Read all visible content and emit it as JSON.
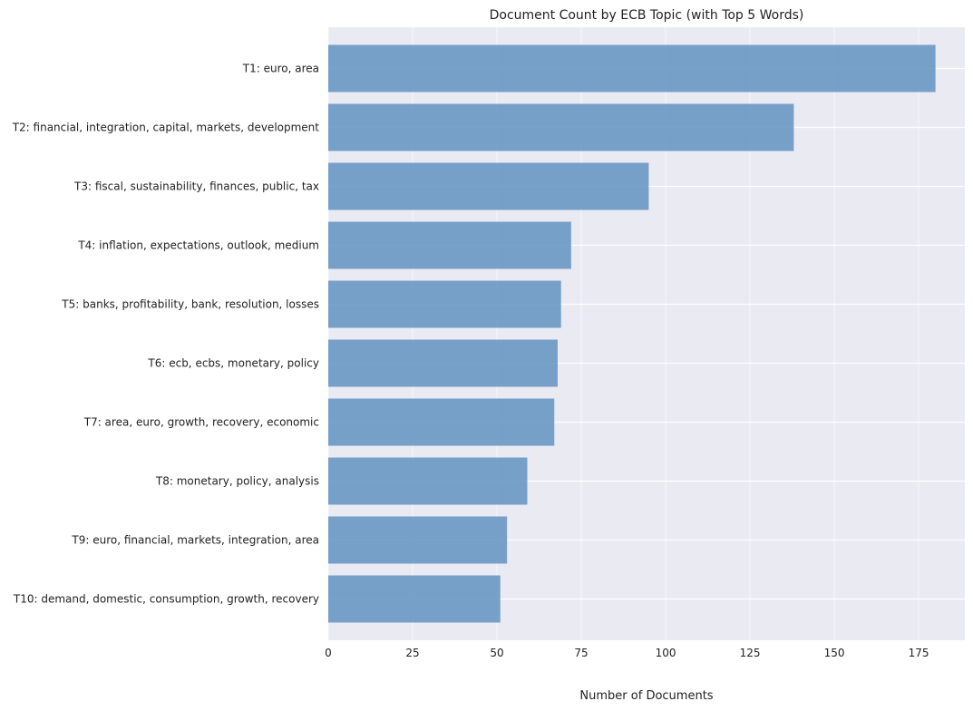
{
  "chart_data": {
    "type": "bar",
    "orientation": "horizontal",
    "title": "Document Count by ECB Topic (with Top 5 Words)",
    "xlabel": "Number of Documents",
    "ylabel": "",
    "categories": [
      "T1: euro, area",
      "T2: financial, integration, capital, markets, development",
      "T3: fiscal, sustainability, finances, public, tax",
      "T4: inflation, expectations, outlook, medium",
      "T5: banks, profitability, bank, resolution, losses",
      "T6: ecb, ecbs, monetary, policy",
      "T7: area, euro, growth, recovery, economic",
      "T8: monetary, policy, analysis",
      "T9: euro, financial, markets, integration, area",
      "T10: demand, domestic, consumption, growth, recovery"
    ],
    "values": [
      180,
      138,
      95,
      72,
      69,
      68,
      67,
      59,
      53,
      51
    ],
    "xticks": [
      0,
      25,
      50,
      75,
      100,
      125,
      150,
      175
    ],
    "xlim": [
      0,
      188.7
    ],
    "grid": true,
    "colors": {
      "bar": "#6a98c4",
      "background": "#eaeaf2",
      "grid": "#ffffff"
    }
  }
}
